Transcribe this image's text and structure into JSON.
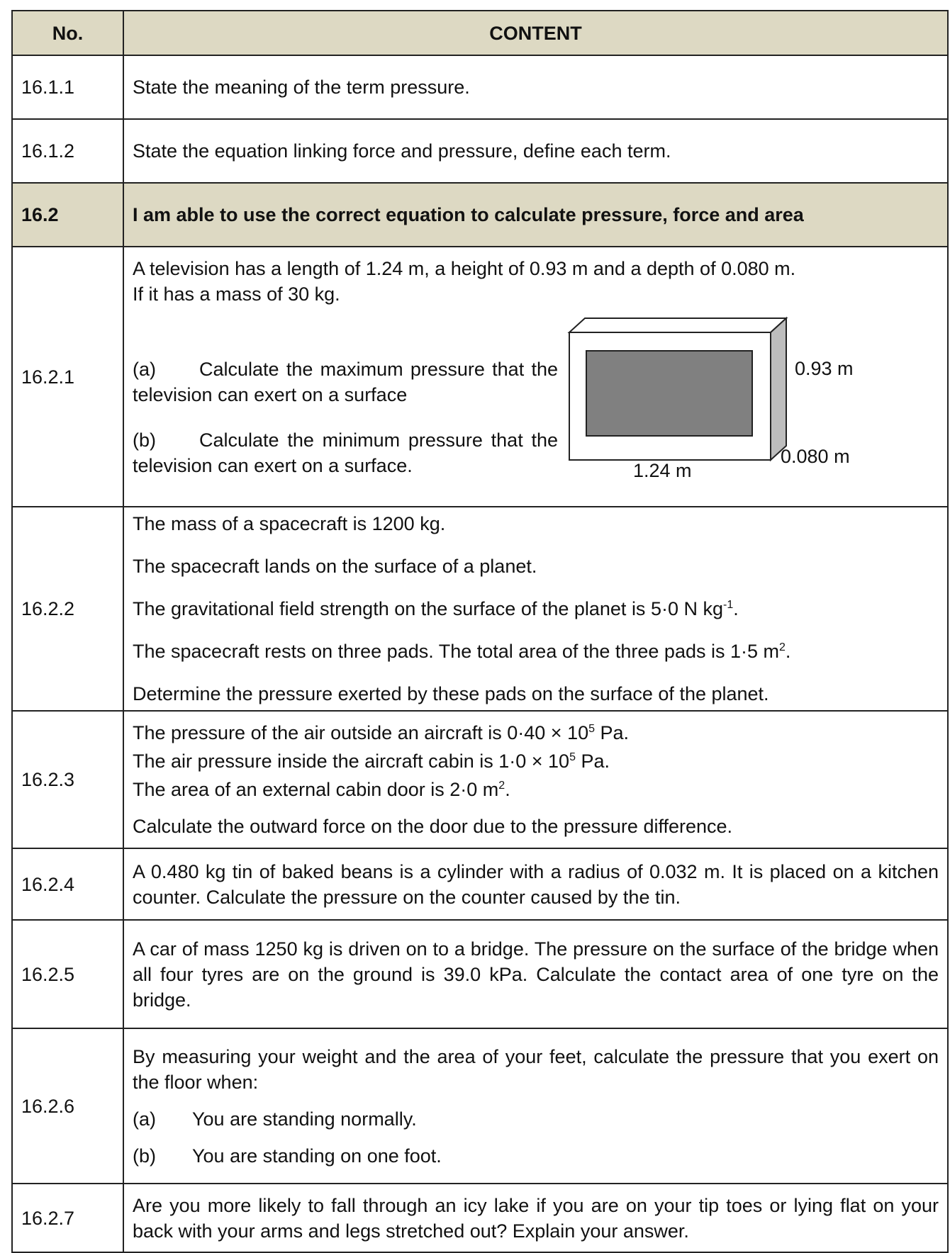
{
  "header": {
    "number": "No.",
    "content": "CONTENT"
  },
  "rows": [
    {
      "number": "16.1.1",
      "paragraphs": [
        [
          "State the meaning of the term pressure."
        ]
      ]
    },
    {
      "number": "16.1.2",
      "paragraphs": [
        [
          "State the equation linking force and pressure, define each term."
        ]
      ]
    },
    {
      "number": "16.2",
      "paragraphs": [
        [
          "I am able to use the correct equation to calculate pressure, force and area"
        ]
      ]
    },
    {
      "number": "16.2.1",
      "paragraphs": [
        [
          "A television has a length of 1.24 m, a height of 0.93 m and a depth of 0.080 m."
        ],
        [
          "If it has a mass of 30 kg."
        ]
      ],
      "parts": [
        {
          "label": "(a)",
          "text": "Calculate the maximum pressure that the television can exert on a surface"
        },
        {
          "label": "(b)",
          "text": "Calculate the minimum pressure that the television can exert on a surface."
        }
      ],
      "diagram": {
        "height": "0.93 m",
        "depth": "0.080 m",
        "length": "1.24 m"
      }
    },
    {
      "number": "16.2.2",
      "paragraphs": [
        [
          "The mass of a spacecraft is 1200 kg."
        ],
        [
          "The spacecraft lands on the surface of a planet."
        ],
        [
          "The gravitational field strength on the surface of the planet is 5·0 N kg",
          {
            "sup": "-1"
          },
          "."
        ],
        [
          "The spacecraft rests on three pads. The total area of the three pads is 1·5 m",
          {
            "sup": "2"
          },
          "."
        ],
        [
          "Determine the pressure exerted by these pads on the surface of the planet."
        ]
      ]
    },
    {
      "number": "16.2.3",
      "paragraphs": [
        [
          "The pressure of the air outside an aircraft is 0·40 × 10",
          {
            "sup": "5"
          },
          " Pa."
        ],
        [
          "The air pressure inside the aircraft cabin is 1·0 × 10",
          {
            "sup": "5"
          },
          " Pa."
        ],
        [
          "The area of an external cabin door is 2·0 m",
          {
            "sup": "2"
          },
          "."
        ],
        [
          "Calculate the outward force on the door due to the pressure difference."
        ]
      ]
    },
    {
      "number": "16.2.4",
      "paragraphs": [
        [
          "A 0.480 kg tin of baked beans is a cylinder with a radius of 0.032 m. It is placed on a kitchen counter. Calculate the pressure on the counter caused by the tin."
        ]
      ]
    },
    {
      "number": "16.2.5",
      "paragraphs": [
        [
          "A car of mass 1250 kg is driven on to a bridge. The pressure on the surface of the bridge when all four tyres are on the ground is 39.0 kPa. Calculate the contact area of one tyre on the bridge."
        ]
      ]
    },
    {
      "number": "16.2.6",
      "paragraphs": [
        [
          "By measuring your weight and the area of your feet, calculate the pressure that you exert on the floor when:"
        ]
      ],
      "parts": [
        {
          "label": "(a)",
          "text": "You are standing normally."
        },
        {
          "label": "(b)",
          "text": "You are standing on one foot."
        }
      ]
    },
    {
      "number": "16.2.7",
      "paragraphs": [
        [
          "Are you more likely to fall through an icy lake if you are on your tip toes or lying flat on your back with your arms and legs stretched out? Explain your answer."
        ]
      ]
    }
  ]
}
